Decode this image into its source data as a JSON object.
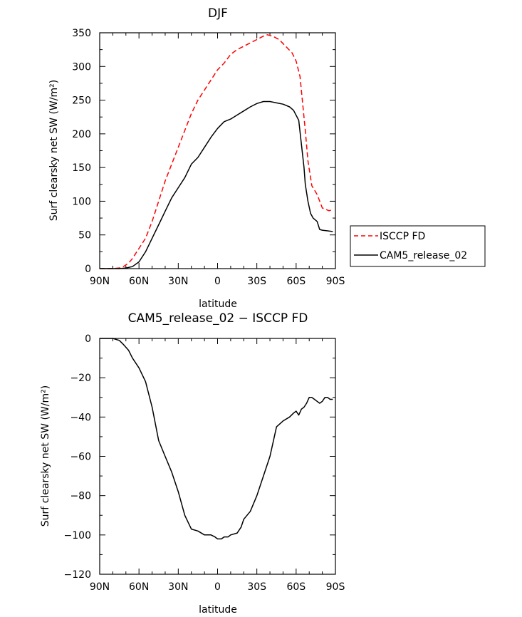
{
  "chart_data": [
    {
      "type": "line",
      "title": "DJF",
      "xlabel": "latitude",
      "ylabel": "Surf clearsky net SW (W/m²)",
      "xlim": [
        -90,
        90
      ],
      "ylim": [
        0,
        350
      ],
      "x_ticks": [
        -90,
        -60,
        -30,
        0,
        30,
        60,
        90
      ],
      "x_tick_labels": [
        "90N",
        "60N",
        "30N",
        "0",
        "30S",
        "60S",
        "90S"
      ],
      "y_ticks": [
        0,
        50,
        100,
        150,
        200,
        250,
        300,
        350
      ],
      "y_tick_labels": [
        "0",
        "50",
        "100",
        "150",
        "200",
        "250",
        "300",
        "350"
      ],
      "grid": false,
      "legend_position": "right",
      "series": [
        {
          "name": "ISCCP FD",
          "color": "#ff0000",
          "dash": "dashed",
          "x": [
            -90,
            -80,
            -75,
            -72,
            -68,
            -65,
            -60,
            -55,
            -50,
            -45,
            -40,
            -35,
            -30,
            -25,
            -20,
            -15,
            -10,
            -5,
            0,
            5,
            10,
            15,
            20,
            25,
            30,
            35,
            38,
            42,
            47,
            52,
            57,
            60,
            63,
            65,
            67,
            69,
            72,
            76,
            80,
            85,
            88
          ],
          "y": [
            0,
            0,
            1,
            3,
            8,
            15,
            30,
            45,
            70,
            100,
            130,
            155,
            180,
            205,
            230,
            250,
            265,
            280,
            295,
            305,
            318,
            325,
            330,
            335,
            340,
            345,
            347,
            345,
            340,
            330,
            320,
            308,
            285,
            245,
            205,
            160,
            123,
            110,
            90,
            86,
            87
          ]
        },
        {
          "name": "CAM5_release_02",
          "color": "#000000",
          "dash": "solid",
          "x": [
            -90,
            -80,
            -75,
            -70,
            -65,
            -60,
            -55,
            -50,
            -45,
            -40,
            -35,
            -30,
            -25,
            -20,
            -15,
            -10,
            -5,
            0,
            5,
            10,
            15,
            20,
            25,
            30,
            35,
            40,
            45,
            50,
            55,
            58,
            62,
            64,
            66,
            67,
            69,
            71,
            73,
            76,
            78,
            80,
            84,
            88
          ],
          "y": [
            0,
            0,
            0,
            1,
            3,
            10,
            25,
            45,
            65,
            85,
            105,
            120,
            135,
            155,
            165,
            180,
            195,
            208,
            218,
            222,
            228,
            234,
            240,
            245,
            248,
            248,
            246,
            244,
            240,
            235,
            220,
            185,
            150,
            125,
            100,
            82,
            75,
            70,
            58,
            57,
            56,
            55
          ]
        }
      ]
    },
    {
      "type": "line",
      "title": "CAM5_release_02 − ISCCP FD",
      "xlabel": "latitude",
      "ylabel": "Surf clearsky net SW (W/m²)",
      "xlim": [
        -90,
        90
      ],
      "ylim": [
        -120,
        0
      ],
      "x_ticks": [
        -90,
        -60,
        -30,
        0,
        30,
        60,
        90
      ],
      "x_tick_labels": [
        "90N",
        "60N",
        "30N",
        "0",
        "30S",
        "60S",
        "90S"
      ],
      "y_ticks": [
        -120,
        -100,
        -80,
        -60,
        -40,
        -20,
        0
      ],
      "y_tick_labels": [
        "−120",
        "−100",
        "−80",
        "−60",
        "−40",
        "−20",
        "0"
      ],
      "grid": false,
      "series": [
        {
          "color": "#000000",
          "dash": "solid",
          "x": [
            -90,
            -80,
            -75,
            -72,
            -68,
            -65,
            -60,
            -55,
            -50,
            -45,
            -40,
            -35,
            -30,
            -25,
            -20,
            -15,
            -10,
            -5,
            -2,
            0,
            3,
            5,
            8,
            10,
            15,
            18,
            20,
            25,
            30,
            35,
            40,
            45,
            50,
            55,
            58,
            60,
            62,
            64,
            66,
            68,
            70,
            72,
            74,
            76,
            78,
            80,
            82,
            84,
            86,
            88
          ],
          "y": [
            0,
            0,
            -1,
            -3,
            -6,
            -10,
            -15,
            -22,
            -35,
            -52,
            -60,
            -68,
            -78,
            -90,
            -97,
            -98,
            -100,
            -100,
            -101,
            -102,
            -102,
            -101,
            -101,
            -100,
            -99,
            -96,
            -92,
            -88,
            -80,
            -70,
            -60,
            -45,
            -42,
            -40,
            -38,
            -37,
            -39,
            -36,
            -35,
            -33,
            -30,
            -30,
            -31,
            -32,
            -33,
            -32,
            -30,
            -30,
            -31,
            -31
          ]
        }
      ]
    }
  ]
}
